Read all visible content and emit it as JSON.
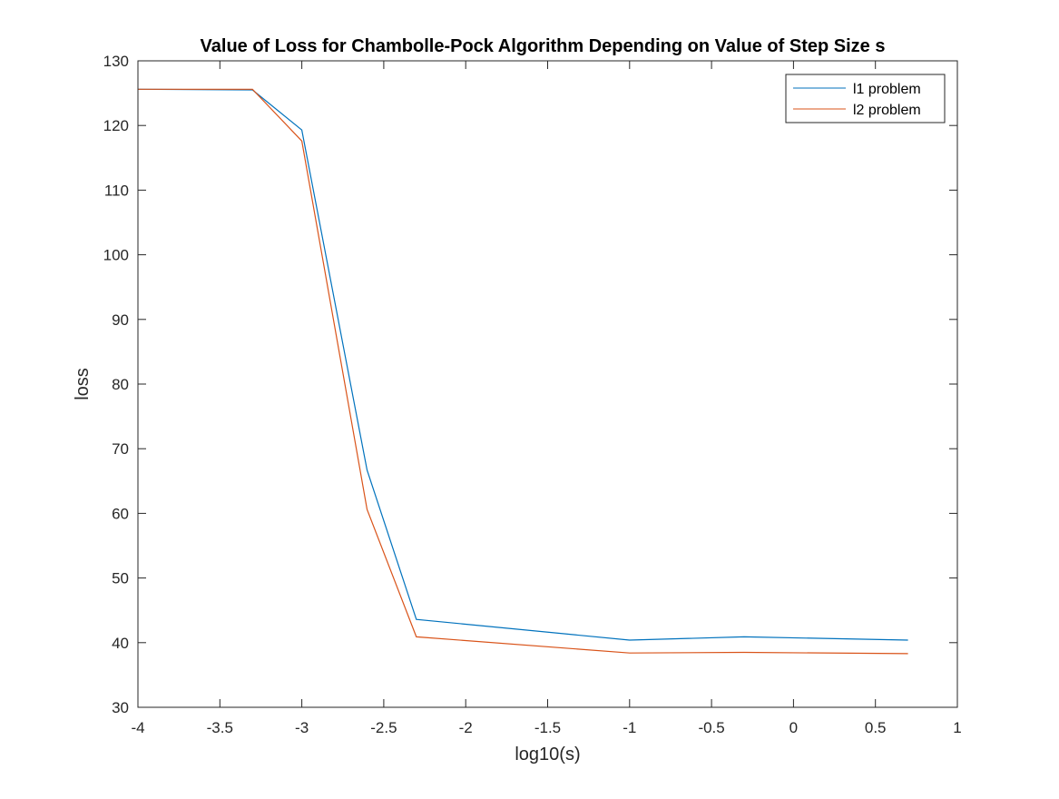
{
  "chart_data": {
    "type": "line",
    "title": "Value of Loss for Chambolle-Pock Algorithm Depending on Value of Step Size s",
    "xlabel": "log10(s)",
    "ylabel": "loss",
    "xlim": [
      -4,
      1
    ],
    "ylim": [
      30,
      130
    ],
    "xticks": [
      -4,
      -3.5,
      -3,
      -2.5,
      -2,
      -1.5,
      -1,
      -0.5,
      0,
      0.5,
      1
    ],
    "xtick_labels": [
      "-4",
      "-3.5",
      "-3",
      "-2.5",
      "-2",
      "-1.5",
      "-1",
      "-0.5",
      "0",
      "0.5",
      "1"
    ],
    "yticks": [
      30,
      40,
      50,
      60,
      70,
      80,
      90,
      100,
      110,
      120,
      130
    ],
    "ytick_labels": [
      "30",
      "40",
      "50",
      "60",
      "70",
      "80",
      "90",
      "100",
      "110",
      "120",
      "130"
    ],
    "grid": false,
    "legend_position": "top-right",
    "series": [
      {
        "name": "l1 problem",
        "color": "#0072BD",
        "x": [
          -4,
          -3.301,
          -3,
          -2.602,
          -2.301,
          -1,
          -0.301,
          0.699
        ],
        "y": [
          125.6,
          125.5,
          119.3,
          66.7,
          43.6,
          40.4,
          40.9,
          40.4
        ]
      },
      {
        "name": "l2 problem",
        "color": "#D95319",
        "x": [
          -4,
          -3.301,
          -3,
          -2.602,
          -2.301,
          -1,
          -0.301,
          0.699
        ],
        "y": [
          125.6,
          125.6,
          117.6,
          60.6,
          40.9,
          38.4,
          38.5,
          38.3
        ]
      }
    ]
  }
}
